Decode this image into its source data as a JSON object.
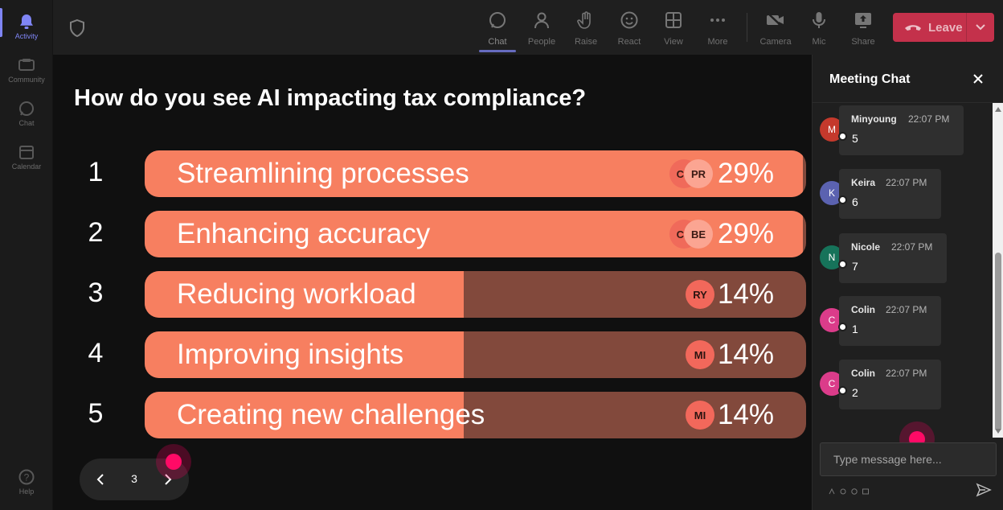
{
  "rail": {
    "items": [
      {
        "label": "Activity",
        "icon": "bell-icon",
        "active": true
      },
      {
        "label": "Community",
        "icon": "community-icon",
        "active": false
      },
      {
        "label": "Chat",
        "icon": "chat-icon",
        "active": false
      },
      {
        "label": "Calendar",
        "icon": "calendar-icon",
        "active": false
      },
      {
        "label": "Help",
        "icon": "help-icon",
        "active": false
      }
    ]
  },
  "toolbar": {
    "chat": "Chat",
    "people": "People",
    "raise": "Raise",
    "react": "React",
    "view": "View",
    "more": "More",
    "camera": "Camera",
    "mic": "Mic",
    "share": "Share",
    "leave": "Leave"
  },
  "poll": {
    "question": "How do you see AI impacting tax compliance?",
    "options": [
      {
        "num": "1",
        "label": "Streamlining processes",
        "percent": "29%",
        "value": 29,
        "voters": [
          "CC",
          "PR"
        ]
      },
      {
        "num": "2",
        "label": "Enhancing accuracy",
        "percent": "29%",
        "value": 29,
        "voters": [
          "CC",
          "BE"
        ]
      },
      {
        "num": "3",
        "label": "Reducing workload",
        "percent": "14%",
        "value": 14,
        "voters": [
          "RY"
        ]
      },
      {
        "num": "4",
        "label": "Improving insights",
        "percent": "14%",
        "value": 14,
        "voters": [
          "MI"
        ]
      },
      {
        "num": "5",
        "label": "Creating new challenges",
        "percent": "14%",
        "value": 14,
        "voters": [
          "MI"
        ]
      }
    ],
    "max_value": 29
  },
  "pager": {
    "page": "3"
  },
  "chat": {
    "title": "Meeting Chat",
    "messages": [
      {
        "initial": "M",
        "name": "Minyoung",
        "time": "22:07 PM",
        "text": "5",
        "color": "#c4392c"
      },
      {
        "initial": "K",
        "name": "Keira",
        "time": "22:07 PM",
        "text": "6",
        "color": "#5b62b0"
      },
      {
        "initial": "N",
        "name": "Nicole",
        "time": "22:07 PM",
        "text": "7",
        "color": "#16735a"
      },
      {
        "initial": "C",
        "name": "Colin",
        "time": "22:07 PM",
        "text": "1",
        "color": "#db3c8a"
      },
      {
        "initial": "C",
        "name": "Colin",
        "time": "22:07 PM",
        "text": "2",
        "color": "#db3c8a"
      }
    ],
    "input_placeholder": "Type message here..."
  },
  "colors": {
    "bar_fill": "#f77f60",
    "bar_track": "#82493c",
    "leave": "#c4314b",
    "accent": "#7f85f5"
  }
}
